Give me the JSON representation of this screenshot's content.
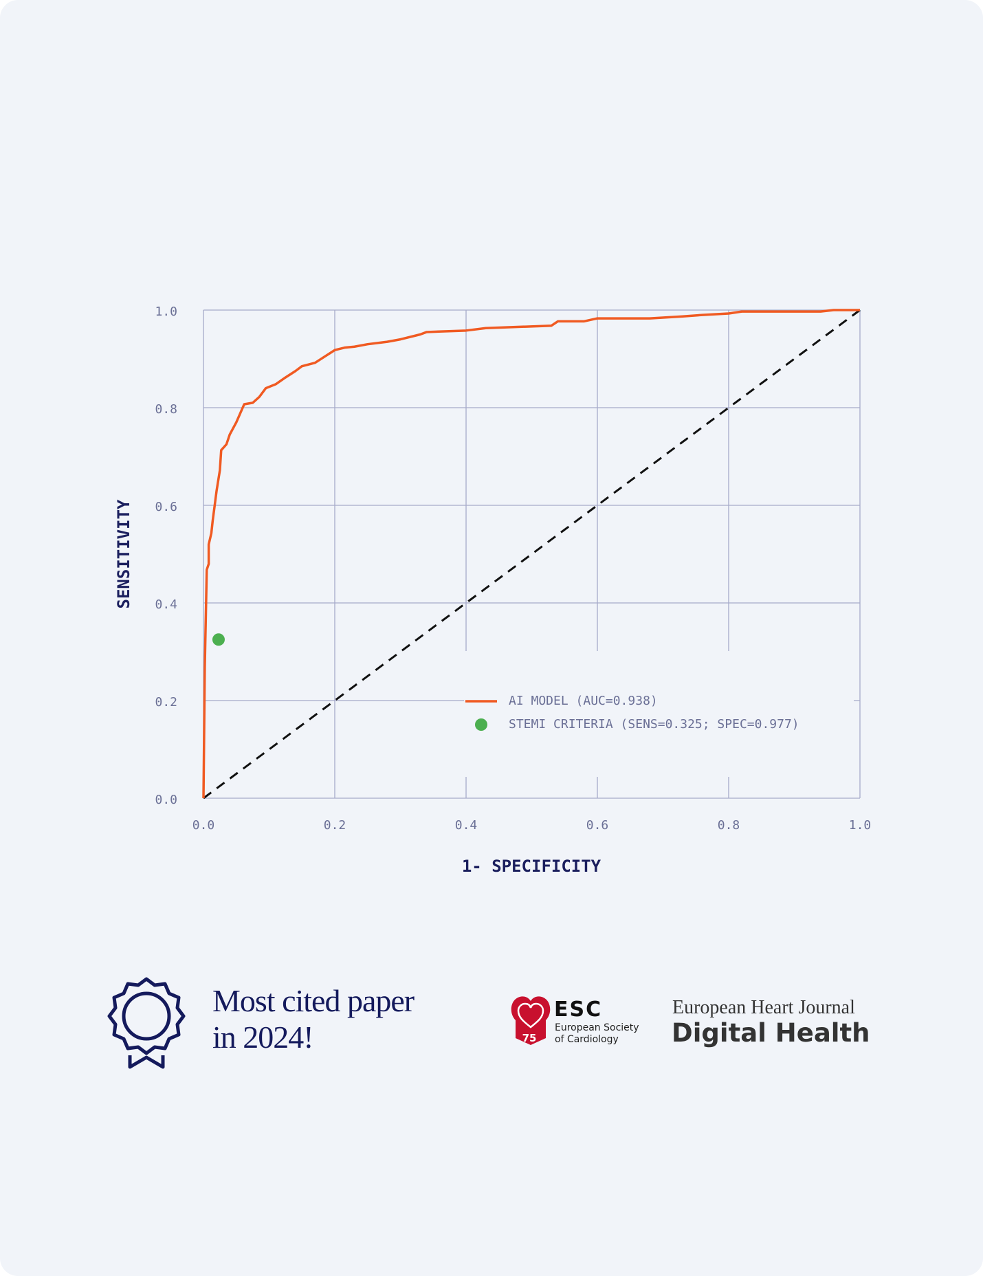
{
  "chart_data": {
    "type": "line",
    "xlabel": "1- SPECIFICITY",
    "ylabel": "SENSITIVITY",
    "xlim": [
      0,
      1
    ],
    "ylim": [
      0,
      1
    ],
    "xticks": [
      {
        "value": 0,
        "label": "0.0"
      },
      {
        "value": 0.2,
        "label": "0.2"
      },
      {
        "value": 0.4,
        "label": "0.4"
      },
      {
        "value": 0.6,
        "label": "0.6"
      },
      {
        "value": 0.8,
        "label": "0.8"
      },
      {
        "value": 1,
        "label": "1.0"
      }
    ],
    "yticks": [
      {
        "value": 0,
        "label": "0.0"
      },
      {
        "value": 0.2,
        "label": "0.2"
      },
      {
        "value": 0.4,
        "label": "0.4"
      },
      {
        "value": 0.6,
        "label": "0.6"
      },
      {
        "value": 0.8,
        "label": "0.8"
      },
      {
        "value": 1,
        "label": "1.0"
      }
    ],
    "grid": true,
    "legend": "lower right",
    "diagonal": true,
    "series": [
      {
        "name": "AI MODEL (AUC=0.938)",
        "color": "#f05a22",
        "x": [
          0,
          0.002,
          0.005,
          0.008,
          0.008,
          0.012,
          0.014,
          0.02,
          0.025,
          0.027,
          0.035,
          0.04,
          0.05,
          0.062,
          0.075,
          0.085,
          0.095,
          0.11,
          0.125,
          0.14,
          0.15,
          0.17,
          0.185,
          0.2,
          0.215,
          0.23,
          0.25,
          0.28,
          0.3,
          0.33,
          0.34,
          0.4,
          0.43,
          0.53,
          0.54,
          0.58,
          0.6,
          0.68,
          0.73,
          0.76,
          0.8,
          0.82,
          0.94,
          0.96,
          1
        ],
        "values": [
          0,
          0.268,
          0.468,
          0.48,
          0.52,
          0.543,
          0.568,
          0.63,
          0.672,
          0.713,
          0.725,
          0.745,
          0.77,
          0.807,
          0.81,
          0.822,
          0.84,
          0.848,
          0.862,
          0.875,
          0.885,
          0.892,
          0.905,
          0.918,
          0.923,
          0.925,
          0.93,
          0.935,
          0.94,
          0.95,
          0.955,
          0.958,
          0.963,
          0.968,
          0.977,
          0.977,
          0.983,
          0.983,
          0.987,
          0.99,
          0.993,
          0.997,
          0.997,
          1,
          1
        ]
      },
      {
        "name": "STEMI CRITERIA (SENS=0.325; SPEC=0.977)",
        "color": "#4caf50",
        "type": "scatter",
        "x": [
          0.023
        ],
        "values": [
          0.325
        ]
      }
    ]
  },
  "award": {
    "lines": [
      "Most cited paper",
      "in 2024!"
    ]
  },
  "esc": {
    "badge": "75",
    "name": "ESC",
    "lines": [
      "European Society",
      "of Cardiology"
    ]
  },
  "journal": {
    "name": "European Heart Journal",
    "subtitle": "Digital Health"
  }
}
